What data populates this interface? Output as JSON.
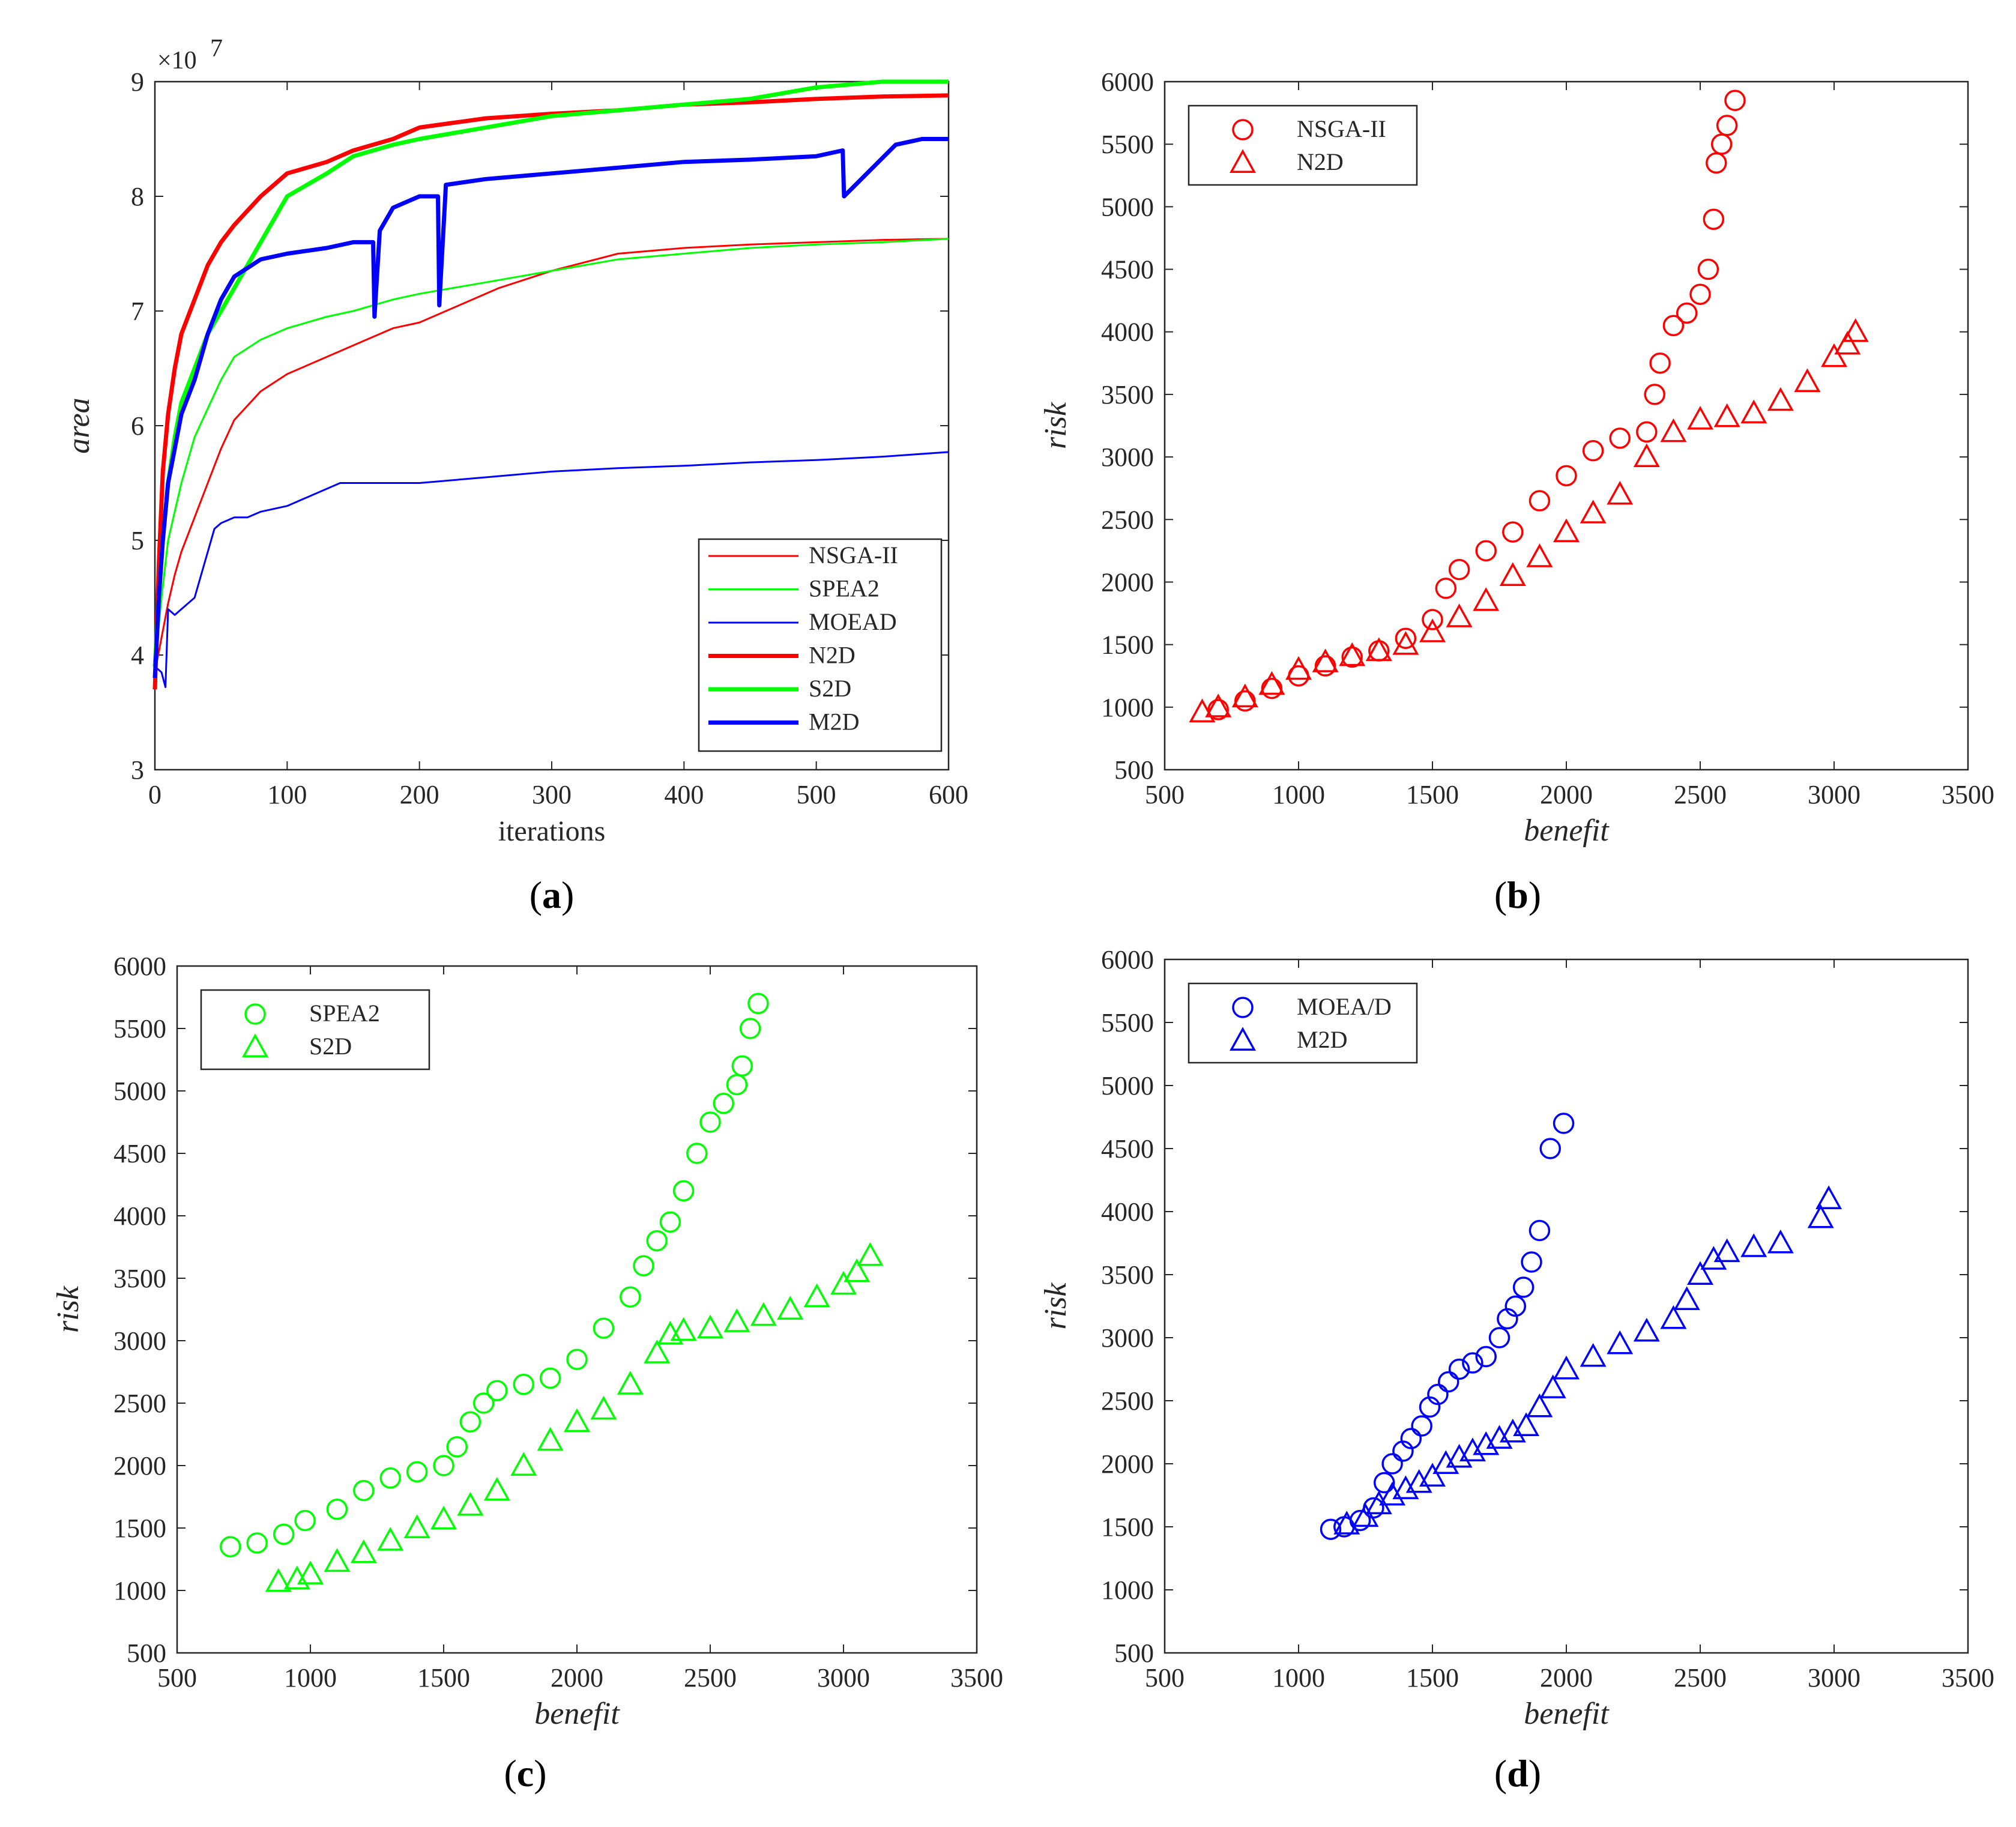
{
  "colors": {
    "red": "#ff0000",
    "green": "#00ff00",
    "blue": "#0000ff",
    "axis": "#262626"
  },
  "panels": {
    "a": {
      "caption": "a"
    },
    "b": {
      "caption": "b"
    },
    "c": {
      "caption": "c"
    },
    "d": {
      "caption": "d"
    }
  },
  "chart_data": [
    {
      "id": "a",
      "type": "line",
      "xlabel": "iterations",
      "ylabel": "area",
      "y_multiplier_label": "×10",
      "y_multiplier_exp": "7",
      "xlim": [
        0,
        600
      ],
      "ylim": [
        3,
        9
      ],
      "xticks": [
        0,
        100,
        200,
        300,
        400,
        500,
        600
      ],
      "yticks": [
        3,
        4,
        5,
        6,
        7,
        8,
        9
      ],
      "legend_position": "bottom-right",
      "series": [
        {
          "name": "NSGA-II",
          "color": "#ff0000",
          "bold": false,
          "x": [
            0,
            5,
            10,
            15,
            20,
            30,
            40,
            50,
            60,
            80,
            100,
            130,
            150,
            180,
            200,
            230,
            260,
            300,
            350,
            400,
            450,
            500,
            550,
            600
          ],
          "y": [
            3.85,
            4.15,
            4.45,
            4.7,
            4.9,
            5.2,
            5.5,
            5.8,
            6.05,
            6.3,
            6.45,
            6.6,
            6.7,
            6.85,
            6.9,
            7.05,
            7.2,
            7.35,
            7.5,
            7.55,
            7.58,
            7.6,
            7.62,
            7.63
          ]
        },
        {
          "name": "SPEA2",
          "color": "#00ff00",
          "bold": false,
          "x": [
            0,
            5,
            10,
            20,
            30,
            40,
            50,
            60,
            80,
            100,
            130,
            150,
            180,
            200,
            250,
            300,
            350,
            400,
            450,
            500,
            550,
            600
          ],
          "y": [
            3.9,
            4.5,
            5.0,
            5.5,
            5.9,
            6.15,
            6.4,
            6.6,
            6.75,
            6.85,
            6.95,
            7.0,
            7.1,
            7.15,
            7.25,
            7.35,
            7.45,
            7.5,
            7.55,
            7.58,
            7.6,
            7.63
          ]
        },
        {
          "name": "MOEAD",
          "color": "#0000ff",
          "bold": false,
          "x": [
            0,
            5,
            8,
            10,
            15,
            20,
            30,
            40,
            45,
            50,
            60,
            70,
            80,
            100,
            120,
            140,
            160,
            200,
            250,
            300,
            350,
            400,
            450,
            500,
            550,
            600
          ],
          "y": [
            3.9,
            3.85,
            3.72,
            4.4,
            4.35,
            4.4,
            4.5,
            4.9,
            5.1,
            5.15,
            5.2,
            5.2,
            5.25,
            5.3,
            5.4,
            5.5,
            5.5,
            5.5,
            5.55,
            5.6,
            5.63,
            5.65,
            5.68,
            5.7,
            5.73,
            5.77
          ]
        },
        {
          "name": "N2D",
          "color": "#ff0000",
          "bold": true,
          "x": [
            0,
            3,
            6,
            10,
            15,
            20,
            30,
            40,
            50,
            60,
            80,
            100,
            130,
            150,
            180,
            200,
            250,
            300,
            350,
            400,
            450,
            500,
            550,
            600
          ],
          "y": [
            3.7,
            4.8,
            5.6,
            6.1,
            6.5,
            6.8,
            7.1,
            7.4,
            7.6,
            7.75,
            8.0,
            8.2,
            8.3,
            8.4,
            8.5,
            8.6,
            8.68,
            8.72,
            8.75,
            8.8,
            8.82,
            8.85,
            8.87,
            8.88
          ]
        },
        {
          "name": "S2D",
          "color": "#00ff00",
          "bold": true,
          "x": [
            0,
            3,
            6,
            10,
            15,
            20,
            30,
            40,
            50,
            60,
            80,
            100,
            130,
            150,
            180,
            200,
            250,
            300,
            350,
            400,
            450,
            500,
            550,
            600
          ],
          "y": [
            3.9,
            4.5,
            5.0,
            5.5,
            5.9,
            6.2,
            6.5,
            6.8,
            7.0,
            7.2,
            7.6,
            8.0,
            8.2,
            8.35,
            8.45,
            8.5,
            8.6,
            8.7,
            8.75,
            8.8,
            8.85,
            8.95,
            9.0,
            9.0
          ]
        },
        {
          "name": "M2D",
          "color": "#0000ff",
          "bold": true,
          "x": [
            0,
            3,
            6,
            10,
            15,
            20,
            30,
            40,
            50,
            60,
            80,
            100,
            130,
            150,
            165,
            166,
            170,
            180,
            200,
            214,
            215,
            220,
            250,
            300,
            350,
            400,
            450,
            500,
            520,
            521,
            560,
            580,
            600
          ],
          "y": [
            3.8,
            4.5,
            5.0,
            5.5,
            5.8,
            6.1,
            6.4,
            6.8,
            7.1,
            7.3,
            7.45,
            7.5,
            7.55,
            7.6,
            7.6,
            6.95,
            7.7,
            7.9,
            8.0,
            8.0,
            7.05,
            8.1,
            8.15,
            8.2,
            8.25,
            8.3,
            8.32,
            8.35,
            8.4,
            8.0,
            8.45,
            8.5,
            8.5
          ]
        }
      ]
    },
    {
      "id": "b",
      "type": "scatter",
      "xlabel": "benefit",
      "ylabel": "risk",
      "xlim": [
        500,
        3500
      ],
      "ylim": [
        500,
        6000
      ],
      "xticks": [
        500,
        1000,
        1500,
        2000,
        2500,
        3000,
        3500
      ],
      "yticks": [
        500,
        1000,
        1500,
        2000,
        2500,
        3000,
        3500,
        4000,
        4500,
        5000,
        5500,
        6000
      ],
      "legend_position": "top-left",
      "series": [
        {
          "name": "NSGA-II",
          "marker": "circle",
          "color": "#ff0000",
          "x": [
            700,
            800,
            900,
            1000,
            1100,
            1200,
            1300,
            1400,
            1500,
            1550,
            1600,
            1700,
            1800,
            1900,
            2000,
            2100,
            2200,
            2300,
            2330,
            2350,
            2400,
            2450,
            2500,
            2530,
            2550,
            2560,
            2580,
            2600,
            2630
          ],
          "y": [
            980,
            1050,
            1150,
            1250,
            1330,
            1400,
            1450,
            1550,
            1700,
            1950,
            2100,
            2250,
            2400,
            2650,
            2850,
            3050,
            3150,
            3200,
            3500,
            3750,
            4050,
            4150,
            4300,
            4500,
            4900,
            5350,
            5500,
            5650,
            5850
          ]
        },
        {
          "name": "N2D",
          "marker": "triangle",
          "color": "#ff0000",
          "x": [
            640,
            700,
            800,
            900,
            1000,
            1100,
            1200,
            1300,
            1400,
            1500,
            1600,
            1700,
            1800,
            1900,
            2000,
            2100,
            2200,
            2300,
            2400,
            2500,
            2600,
            2700,
            2800,
            2900,
            3000,
            3050,
            3080
          ],
          "y": [
            960,
            1000,
            1080,
            1180,
            1300,
            1360,
            1410,
            1450,
            1500,
            1600,
            1720,
            1850,
            2050,
            2200,
            2400,
            2550,
            2700,
            3000,
            3200,
            3300,
            3320,
            3350,
            3450,
            3600,
            3800,
            3900,
            4000
          ]
        }
      ]
    },
    {
      "id": "c",
      "type": "scatter",
      "xlabel": "benefit",
      "ylabel": "risk",
      "xlim": [
        500,
        3500
      ],
      "ylim": [
        500,
        6000
      ],
      "xticks": [
        500,
        1000,
        1500,
        2000,
        2500,
        3000,
        3500
      ],
      "yticks": [
        500,
        1000,
        1500,
        2000,
        2500,
        3000,
        3500,
        4000,
        4500,
        5000,
        5500,
        6000
      ],
      "legend_position": "top-left",
      "series": [
        {
          "name": "SPEA2",
          "marker": "circle",
          "color": "#00ff00",
          "x": [
            700,
            800,
            900,
            980,
            1100,
            1200,
            1300,
            1400,
            1500,
            1550,
            1600,
            1650,
            1700,
            1800,
            1900,
            2000,
            2100,
            2200,
            2250,
            2300,
            2350,
            2400,
            2450,
            2500,
            2550,
            2600,
            2620,
            2650,
            2680
          ],
          "y": [
            1350,
            1380,
            1450,
            1560,
            1650,
            1800,
            1900,
            1950,
            2000,
            2150,
            2350,
            2500,
            2600,
            2650,
            2700,
            2850,
            3100,
            3350,
            3600,
            3800,
            3950,
            4200,
            4500,
            4750,
            4900,
            5050,
            5200,
            5500,
            5700
          ]
        },
        {
          "name": "S2D",
          "marker": "triangle",
          "color": "#00ff00",
          "x": [
            880,
            950,
            1000,
            1100,
            1200,
            1300,
            1400,
            1500,
            1600,
            1700,
            1800,
            1900,
            2000,
            2100,
            2200,
            2300,
            2350,
            2400,
            2500,
            2600,
            2700,
            2800,
            2900,
            3000,
            3050,
            3100
          ],
          "y": [
            1070,
            1090,
            1130,
            1230,
            1300,
            1400,
            1500,
            1570,
            1680,
            1800,
            2000,
            2200,
            2350,
            2450,
            2650,
            2900,
            3050,
            3080,
            3100,
            3150,
            3200,
            3250,
            3350,
            3450,
            3550,
            3680
          ]
        }
      ]
    },
    {
      "id": "d",
      "type": "scatter",
      "xlabel": "benefit",
      "ylabel": "risk",
      "xlim": [
        500,
        3500
      ],
      "ylim": [
        500,
        6000
      ],
      "xticks": [
        500,
        1000,
        1500,
        2000,
        2500,
        3000,
        3500
      ],
      "yticks": [
        500,
        1000,
        1500,
        2000,
        2500,
        3000,
        3500,
        4000,
        4500,
        5000,
        5500,
        6000
      ],
      "legend_position": "top-left",
      "series": [
        {
          "name": "MOEA/D",
          "marker": "circle",
          "color": "#0000ff",
          "x": [
            1120,
            1170,
            1230,
            1280,
            1320,
            1350,
            1390,
            1420,
            1460,
            1490,
            1520,
            1560,
            1600,
            1650,
            1700,
            1750,
            1780,
            1810,
            1840,
            1870,
            1900,
            1940,
            1990
          ],
          "y": [
            1480,
            1500,
            1550,
            1650,
            1850,
            2000,
            2100,
            2200,
            2300,
            2450,
            2550,
            2650,
            2750,
            2800,
            2850,
            3000,
            3150,
            3250,
            3400,
            3600,
            3850,
            4500,
            4700
          ]
        },
        {
          "name": "M2D",
          "marker": "triangle",
          "color": "#0000ff",
          "x": [
            1180,
            1250,
            1300,
            1350,
            1400,
            1450,
            1500,
            1550,
            1600,
            1650,
            1700,
            1750,
            1800,
            1850,
            1900,
            1950,
            2000,
            2100,
            2200,
            2300,
            2400,
            2450,
            2500,
            2550,
            2600,
            2700,
            2800,
            2950,
            2980
          ],
          "y": [
            1520,
            1580,
            1680,
            1750,
            1800,
            1850,
            1900,
            2000,
            2050,
            2100,
            2150,
            2200,
            2250,
            2300,
            2450,
            2600,
            2750,
            2850,
            2950,
            3050,
            3150,
            3300,
            3500,
            3620,
            3680,
            3720,
            3750,
            3950,
            4100
          ]
        }
      ]
    }
  ]
}
